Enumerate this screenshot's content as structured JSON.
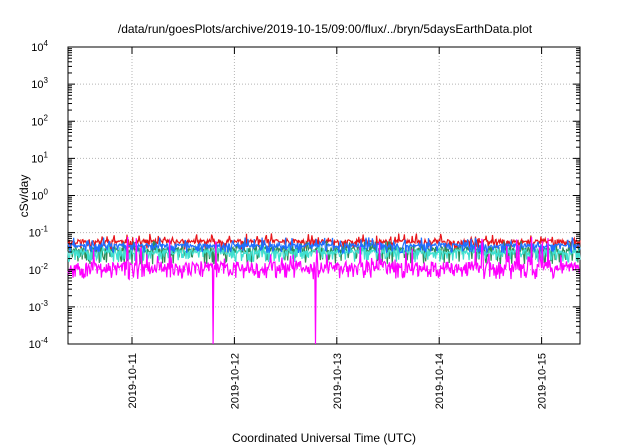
{
  "chart_data": {
    "type": "line",
    "title": "/data/run/goesPlots/archive/2019-10-15/09:00/flux/../bryn/5daysEarthData.plot",
    "xlabel": "Coordinated Universal Time (UTC)",
    "ylabel": "cSv/day",
    "yscale": "log",
    "ylim": [
      0.0001,
      10000
    ],
    "xlim": [
      "2019-10-10T09:00",
      "2019-10-15T09:00"
    ],
    "grid": true,
    "legend": "none",
    "y_ticks": [
      {
        "base": "10",
        "exp": "-4"
      },
      {
        "base": "10",
        "exp": "-3"
      },
      {
        "base": "10",
        "exp": "-2"
      },
      {
        "base": "10",
        "exp": "-1"
      },
      {
        "base": "10",
        "exp": "0"
      },
      {
        "base": "10",
        "exp": "1"
      },
      {
        "base": "10",
        "exp": "2"
      },
      {
        "base": "10",
        "exp": "3"
      },
      {
        "base": "10",
        "exp": "4"
      }
    ],
    "x_ticks": [
      "2019-10-11",
      "2019-10-12",
      "2019-10-13",
      "2019-10-14",
      "2019-10-15"
    ],
    "series": [
      {
        "color": "#e8161b",
        "base": 0.058,
        "low": 0.035,
        "high": 0.095,
        "spike_drop": null,
        "seed": 11
      },
      {
        "color": "#2e8b57",
        "base": 0.035,
        "low": 0.014,
        "high": 0.06,
        "spike_drop": null,
        "seed": 23
      },
      {
        "color": "#40e0d0",
        "base": 0.03,
        "low": 0.016,
        "high": 0.05,
        "spike_drop": null,
        "seed": 37
      },
      {
        "color": "#1e6fff",
        "base": 0.045,
        "low": 0.028,
        "high": 0.075,
        "spike_drop": null,
        "seed": 41
      },
      {
        "color": "#ff00ff",
        "base": 0.012,
        "low": 0.0055,
        "high": 0.08,
        "spike_drop": [
          "2019-10-11T19:00",
          "2019-10-12T19:00"
        ],
        "seed": 53
      }
    ]
  }
}
